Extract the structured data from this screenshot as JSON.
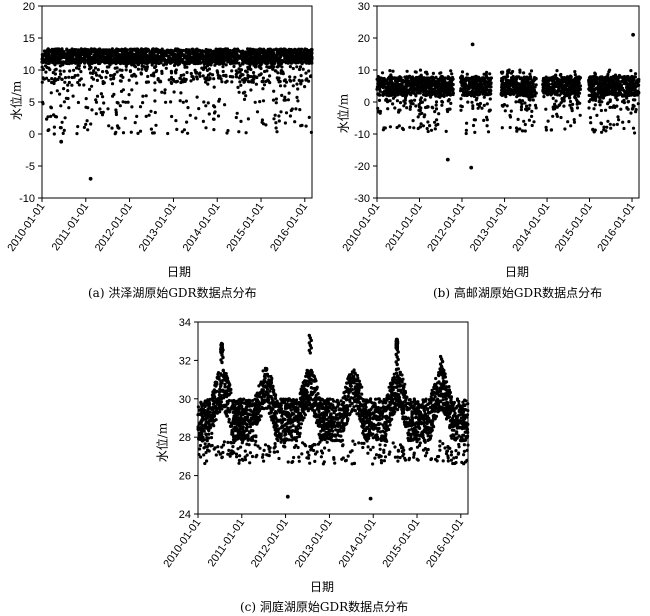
{
  "chart_data": [
    {
      "id": "a",
      "type": "scatter",
      "caption": "(a) 洪泽湖原始GDR数据点分布",
      "xlabel": "日期",
      "ylabel": "水位/m",
      "xlim": [
        "2010-01-01",
        "2016-03-01"
      ],
      "ylim": [
        -10,
        20
      ],
      "yticks": [
        -10,
        -5,
        0,
        5,
        10,
        15,
        20
      ],
      "xticks": [
        "2010-01-01",
        "2011-01-01",
        "2012-01-01",
        "2013-01-01",
        "2014-01-01",
        "2015-01-01",
        "2016-01-01"
      ],
      "series": [
        {
          "values_summary": {
            "typical_range": [
              9,
              13.5
            ],
            "low_outliers": [
              -1,
              -7
            ]
          }
        }
      ],
      "outliers": [
        {
          "x": "2010-06-10",
          "y": -1.2
        },
        {
          "x": "2011-02-10",
          "y": -7
        }
      ]
    },
    {
      "id": "b",
      "type": "scatter",
      "caption": "(b) 高邮湖原始GDR数据点分布",
      "xlabel": "日期",
      "ylabel": "水位/m",
      "xlim": [
        "2010-01-01",
        "2016-03-01"
      ],
      "ylim": [
        -30,
        30
      ],
      "yticks": [
        -30,
        -20,
        -10,
        0,
        10,
        20,
        30
      ],
      "xticks": [
        "2010-01-01",
        "2011-01-01",
        "2012-01-01",
        "2013-01-01",
        "2014-01-01",
        "2015-01-01",
        "2016-01-01"
      ],
      "series": [
        {
          "values_summary": {
            "typical_range": [
              0,
              9
            ]
          }
        }
      ],
      "outliers": [
        {
          "x": "2011-09-01",
          "y": -18
        },
        {
          "x": "2012-03-20",
          "y": -20.5
        },
        {
          "x": "2012-04-01",
          "y": 18
        },
        {
          "x": "2016-01-10",
          "y": 21
        }
      ]
    },
    {
      "id": "c",
      "type": "scatter",
      "caption": "(c) 洞庭湖原始GDR数据点分布",
      "xlabel": "日期",
      "ylabel": "水位/m",
      "xlim": [
        "2010-01-01",
        "2016-03-01"
      ],
      "ylim": [
        24,
        34
      ],
      "yticks": [
        24,
        26,
        28,
        30,
        32,
        34
      ],
      "xticks": [
        "2010-01-01",
        "2011-01-01",
        "2012-01-01",
        "2013-01-01",
        "2014-01-01",
        "2015-01-01",
        "2016-01-01"
      ],
      "series": [
        {
          "values_summary": {
            "typical_range": [
              27,
              30
            ],
            "seasonal_peaks": [
              {
                "x": "2010-07-20",
                "y": 32.8
              },
              {
                "x": "2012-07-25",
                "y": 33.3
              },
              {
                "x": "2014-07-20",
                "y": 32.7
              },
              {
                "x": "2015-07-25",
                "y": 32.2
              }
            ]
          }
        }
      ],
      "outliers": [
        {
          "x": "2012-01-20",
          "y": 24.9
        },
        {
          "x": "2013-12-10",
          "y": 24.8
        }
      ]
    }
  ]
}
